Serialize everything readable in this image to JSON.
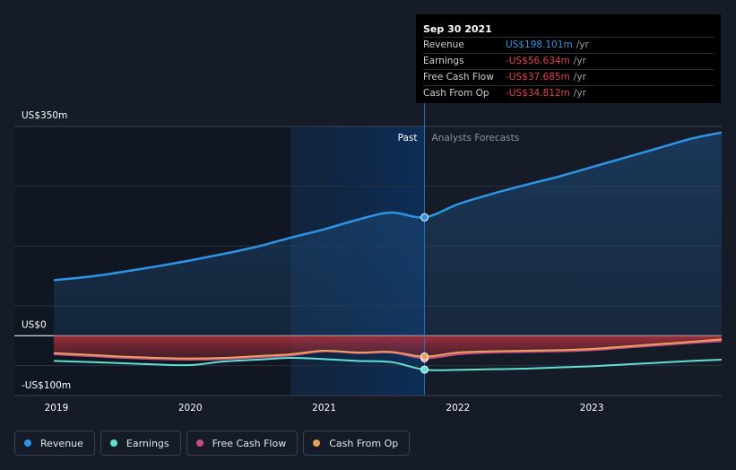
{
  "chart_data": {
    "type": "line",
    "y_unit": "US$m",
    "ylim": [
      -100,
      350
    ],
    "y_ticks": [
      {
        "value": 350,
        "label": "US$350m"
      },
      {
        "value": 0,
        "label": "US$0"
      },
      {
        "value": -100,
        "label": "-US$100m"
      }
    ],
    "x_range": [
      2018.9,
      2023.97
    ],
    "x_ticks": [
      {
        "value": 2019,
        "label": "2019"
      },
      {
        "value": 2020,
        "label": "2020"
      },
      {
        "value": 2021,
        "label": "2021"
      },
      {
        "value": 2022,
        "label": "2022"
      },
      {
        "value": 2023,
        "label": "2023"
      }
    ],
    "past_label": "Past",
    "forecast_label": "Analysts Forecasts",
    "past_shade_start": 2020.75,
    "divider_x": 2021.75,
    "series": [
      {
        "name": "Revenue",
        "color": "#2d95e6",
        "fill": true,
        "points": [
          [
            2018.98,
            93
          ],
          [
            2019.25,
            99
          ],
          [
            2019.5,
            107
          ],
          [
            2019.75,
            116
          ],
          [
            2020.0,
            126
          ],
          [
            2020.25,
            137
          ],
          [
            2020.5,
            149
          ],
          [
            2020.75,
            164
          ],
          [
            2021.0,
            178
          ],
          [
            2021.25,
            194
          ],
          [
            2021.5,
            206
          ],
          [
            2021.75,
            198.101
          ],
          [
            2022.0,
            220
          ],
          [
            2022.25,
            237
          ],
          [
            2022.5,
            252
          ],
          [
            2022.75,
            266
          ],
          [
            2023.0,
            282
          ],
          [
            2023.25,
            298
          ],
          [
            2023.5,
            314
          ],
          [
            2023.75,
            330
          ],
          [
            2023.97,
            340
          ]
        ]
      },
      {
        "name": "Earnings",
        "color": "#5fe0d2",
        "fill": false,
        "points": [
          [
            2018.98,
            -42
          ],
          [
            2019.25,
            -44
          ],
          [
            2019.5,
            -46
          ],
          [
            2019.75,
            -48
          ],
          [
            2020.0,
            -49
          ],
          [
            2020.25,
            -43
          ],
          [
            2020.5,
            -40
          ],
          [
            2020.75,
            -37
          ],
          [
            2021.0,
            -39
          ],
          [
            2021.25,
            -42
          ],
          [
            2021.5,
            -44
          ],
          [
            2021.75,
            -56.634
          ],
          [
            2022.0,
            -57
          ],
          [
            2022.25,
            -56
          ],
          [
            2022.5,
            -55
          ],
          [
            2022.75,
            -53
          ],
          [
            2023.0,
            -51
          ],
          [
            2023.25,
            -48
          ],
          [
            2023.5,
            -45
          ],
          [
            2023.75,
            -42
          ],
          [
            2023.97,
            -40
          ]
        ]
      },
      {
        "name": "Free Cash Flow",
        "color": "#c94a8c",
        "fill": true,
        "points": [
          [
            2018.98,
            -31
          ],
          [
            2019.25,
            -34
          ],
          [
            2019.5,
            -37
          ],
          [
            2019.75,
            -39
          ],
          [
            2020.0,
            -40
          ],
          [
            2020.25,
            -39
          ],
          [
            2020.5,
            -36
          ],
          [
            2020.75,
            -33
          ],
          [
            2021.0,
            -26
          ],
          [
            2021.25,
            -29
          ],
          [
            2021.5,
            -28
          ],
          [
            2021.75,
            -37.685
          ],
          [
            2022.0,
            -31
          ],
          [
            2022.25,
            -28
          ],
          [
            2022.5,
            -27
          ],
          [
            2022.75,
            -26
          ],
          [
            2023.0,
            -24
          ],
          [
            2023.25,
            -20
          ],
          [
            2023.5,
            -16
          ],
          [
            2023.75,
            -12
          ],
          [
            2023.97,
            -9
          ]
        ]
      },
      {
        "name": "Cash From Op",
        "color": "#e8a25c",
        "fill": false,
        "points": [
          [
            2018.98,
            -29
          ],
          [
            2019.25,
            -32
          ],
          [
            2019.5,
            -35
          ],
          [
            2019.75,
            -37
          ],
          [
            2020.0,
            -38
          ],
          [
            2020.25,
            -37
          ],
          [
            2020.5,
            -34
          ],
          [
            2020.75,
            -31
          ],
          [
            2021.0,
            -25
          ],
          [
            2021.25,
            -28
          ],
          [
            2021.5,
            -27
          ],
          [
            2021.75,
            -34.812
          ],
          [
            2022.0,
            -28
          ],
          [
            2022.25,
            -26
          ],
          [
            2022.5,
            -25
          ],
          [
            2022.75,
            -24
          ],
          [
            2023.0,
            -22
          ],
          [
            2023.25,
            -18
          ],
          [
            2023.5,
            -14
          ],
          [
            2023.75,
            -10
          ],
          [
            2023.97,
            -6
          ]
        ]
      }
    ]
  },
  "tooltip": {
    "date": "Sep 30 2021",
    "rows": [
      {
        "label": "Revenue",
        "value": "US$198.101m",
        "unit": "/yr",
        "color": "#2d95e6"
      },
      {
        "label": "Earnings",
        "value": "-US$56.634m",
        "unit": "/yr",
        "color": "#e8404a"
      },
      {
        "label": "Free Cash Flow",
        "value": "-US$37.685m",
        "unit": "/yr",
        "color": "#e8404a"
      },
      {
        "label": "Cash From Op",
        "value": "-US$34.812m",
        "unit": "/yr",
        "color": "#e8404a"
      }
    ]
  },
  "legend": [
    {
      "label": "Revenue",
      "color": "#2d95e6"
    },
    {
      "label": "Earnings",
      "color": "#5fe0d2"
    },
    {
      "label": "Free Cash Flow",
      "color": "#c94a8c"
    },
    {
      "label": "Cash From Op",
      "color": "#e8a25c"
    }
  ]
}
